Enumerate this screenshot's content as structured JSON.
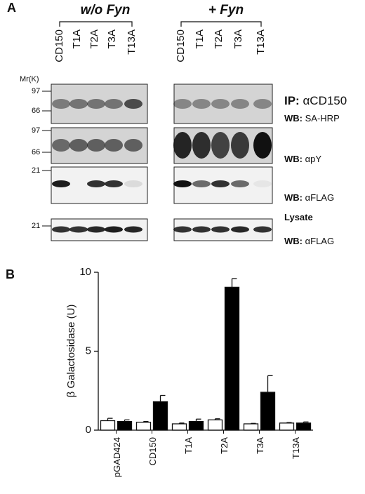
{
  "panel_a": {
    "label": "A",
    "mr_label": "Mr(K)",
    "groups": [
      {
        "title": "w/o Fyn",
        "lanes": [
          "CD150",
          "T1A",
          "T2A",
          "T3A",
          "T13A"
        ]
      },
      {
        "title": "+ Fyn",
        "lanes": [
          "CD150",
          "T1A",
          "T2A",
          "T3A",
          "T13A"
        ]
      }
    ],
    "rows": [
      {
        "markers": [
          "97",
          "66"
        ],
        "labels": [
          {
            "prefix": "IP:",
            "text": "αCD150"
          },
          {
            "prefix": "WB:",
            "text": "SA-HRP"
          }
        ]
      },
      {
        "markers": [
          "97",
          "66"
        ],
        "labels": [
          {
            "prefix": "WB:",
            "text": "αpY"
          }
        ]
      },
      {
        "markers": [
          "21"
        ],
        "labels": [
          {
            "prefix": "WB:",
            "text": "αFLAG"
          }
        ]
      },
      {
        "markers": [
          "21"
        ],
        "labels": [
          {
            "prefix": "Lysate",
            "text": ""
          },
          {
            "prefix": "WB:",
            "text": "αFLAG"
          }
        ]
      }
    ]
  },
  "chart_data": {
    "type": "bar",
    "label": "B",
    "y_label": "β Galactosidase (U)",
    "categories": [
      "pGAD424",
      "CD150",
      "T1A",
      "T2A",
      "T3A",
      "T13A"
    ],
    "series": [
      {
        "color": "#ffffff",
        "values": [
          0.6,
          0.5,
          0.4,
          0.65,
          0.4,
          0.45
        ],
        "errors": [
          0.15,
          0.05,
          0.05,
          0.07,
          0.03,
          0.03
        ]
      },
      {
        "color": "#000000",
        "values": [
          0.55,
          1.8,
          0.55,
          9.05,
          2.4,
          0.45
        ],
        "errors": [
          0.1,
          0.4,
          0.15,
          0.55,
          1.05,
          0.07
        ]
      }
    ],
    "ylim": [
      0,
      10
    ],
    "yticks": [
      0,
      5,
      10
    ]
  }
}
